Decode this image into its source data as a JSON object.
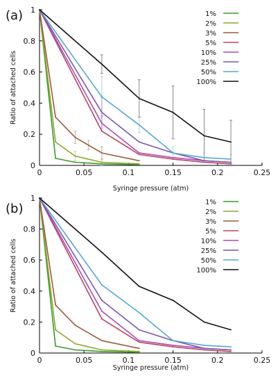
{
  "chart_data": [
    {
      "type": "line",
      "panel_label": "(a)",
      "xlabel": "Syringe pressure (atm)",
      "ylabel": "Ratio of attached cells",
      "xlim": [
        0,
        0.25
      ],
      "ylim": [
        0,
        1
      ],
      "xticks": [
        "0",
        "0.05",
        "0.1",
        "0.15",
        "0.2",
        "0.25"
      ],
      "yticks": [
        "0",
        "0.2",
        "0.4",
        "0.6",
        "0.8",
        "1"
      ],
      "grid": false,
      "legend": "top-right",
      "error_bars": true,
      "series": [
        {
          "name": "1%",
          "color": "#3a9b2e",
          "x": [
            0,
            0.018,
            0.04,
            0.07,
            0.112
          ],
          "y": [
            1,
            0.045,
            0.02,
            0.01,
            0.005
          ]
        },
        {
          "name": "2%",
          "color": "#8da62a",
          "x": [
            0,
            0.018,
            0.04,
            0.07,
            0.112
          ],
          "y": [
            1,
            0.15,
            0.06,
            0.02,
            0.01
          ]
        },
        {
          "name": "3%",
          "color": "#a0583a",
          "x": [
            0,
            0.018,
            0.04,
            0.07,
            0.112
          ],
          "y": [
            1,
            0.31,
            0.18,
            0.08,
            0.03
          ]
        },
        {
          "name": "5%",
          "color": "#b8455e",
          "x": [
            0,
            0.07,
            0.112,
            0.15,
            0.185,
            0.215
          ],
          "y": [
            1,
            0.22,
            0.07,
            0.04,
            0.02,
            0.01
          ]
        },
        {
          "name": "10%",
          "color": "#b049b5",
          "x": [
            0,
            0.07,
            0.112,
            0.15,
            0.185,
            0.215
          ],
          "y": [
            1,
            0.27,
            0.08,
            0.05,
            0.03,
            0.02
          ]
        },
        {
          "name": "25%",
          "color": "#7c55b0",
          "x": [
            0,
            0.07,
            0.112,
            0.15,
            0.185,
            0.215
          ],
          "y": [
            1,
            0.34,
            0.15,
            0.08,
            0.03,
            0.02
          ]
        },
        {
          "name": "50%",
          "color": "#56a6d8",
          "x": [
            0,
            0.07,
            0.112,
            0.15,
            0.185,
            0.215
          ],
          "y": [
            1,
            0.44,
            0.26,
            0.08,
            0.05,
            0.04
          ]
        },
        {
          "name": "100%",
          "color": "#111111",
          "x": [
            0,
            0.07,
            0.112,
            0.15,
            0.185,
            0.215
          ],
          "y": [
            1,
            0.65,
            0.43,
            0.34,
            0.19,
            0.15
          ]
        }
      ],
      "errorbars": [
        {
          "series": "100%",
          "x": 0.07,
          "y": 0.65,
          "err": 0.06
        },
        {
          "series": "100%",
          "x": 0.112,
          "y": 0.43,
          "err": 0.12
        },
        {
          "series": "100%",
          "x": 0.15,
          "y": 0.34,
          "err": 0.17
        },
        {
          "series": "100%",
          "x": 0.185,
          "y": 0.19,
          "err": 0.17
        },
        {
          "series": "100%",
          "x": 0.215,
          "y": 0.15,
          "err": 0.14
        },
        {
          "series": "50%",
          "x": 0.07,
          "y": 0.44,
          "err": 0.13
        },
        {
          "series": "50%",
          "x": 0.112,
          "y": 0.26,
          "err": 0.05
        },
        {
          "series": "50%",
          "x": 0.15,
          "y": 0.08,
          "err": 0.04
        },
        {
          "series": "50%",
          "x": 0.185,
          "y": 0.05,
          "err": 0.03
        },
        {
          "series": "50%",
          "x": 0.215,
          "y": 0.04,
          "err": 0.03
        },
        {
          "series": "25%",
          "x": 0.07,
          "y": 0.34,
          "err": 0.1
        },
        {
          "series": "10%",
          "x": 0.07,
          "y": 0.27,
          "err": 0.05
        },
        {
          "series": "3%",
          "x": 0.04,
          "y": 0.18,
          "err": 0.04
        },
        {
          "series": "3%",
          "x": 0.055,
          "y": 0.13,
          "err": 0.03
        },
        {
          "series": "3%",
          "x": 0.07,
          "y": 0.08,
          "err": 0.04
        },
        {
          "series": "2%",
          "x": 0.04,
          "y": 0.06,
          "err": 0.03
        },
        {
          "series": "2%",
          "x": 0.07,
          "y": 0.02,
          "err": 0.02
        }
      ]
    },
    {
      "type": "line",
      "panel_label": "(b)",
      "xlabel": "Syringe pressure (atm)",
      "ylabel": "Ratio of attached cells",
      "xlim": [
        0,
        0.25
      ],
      "ylim": [
        0,
        1
      ],
      "xticks": [
        "0",
        "0.05",
        "0.1",
        "0.15",
        "0.2",
        "0.25"
      ],
      "yticks": [
        "0",
        "0.2",
        "0.4",
        "0.6",
        "0.8",
        "1"
      ],
      "grid": false,
      "legend": "top-right",
      "error_bars": false,
      "series": [
        {
          "name": "1%",
          "color": "#3a9b2e",
          "x": [
            0,
            0.018,
            0.04,
            0.07,
            0.112
          ],
          "y": [
            1,
            0.045,
            0.02,
            0.01,
            0.005
          ]
        },
        {
          "name": "2%",
          "color": "#8da62a",
          "x": [
            0,
            0.018,
            0.04,
            0.07,
            0.112
          ],
          "y": [
            1,
            0.15,
            0.06,
            0.02,
            0.01
          ]
        },
        {
          "name": "3%",
          "color": "#a0583a",
          "x": [
            0,
            0.018,
            0.04,
            0.07,
            0.112
          ],
          "y": [
            1,
            0.31,
            0.18,
            0.08,
            0.03
          ]
        },
        {
          "name": "5%",
          "color": "#b8455e",
          "x": [
            0,
            0.07,
            0.112,
            0.15,
            0.185,
            0.215
          ],
          "y": [
            1,
            0.22,
            0.07,
            0.04,
            0.02,
            0.01
          ]
        },
        {
          "name": "10%",
          "color": "#b049b5",
          "x": [
            0,
            0.07,
            0.112,
            0.15,
            0.185,
            0.215
          ],
          "y": [
            1,
            0.27,
            0.08,
            0.05,
            0.03,
            0.02
          ]
        },
        {
          "name": "25%",
          "color": "#7c55b0",
          "x": [
            0,
            0.07,
            0.112,
            0.15,
            0.185,
            0.215
          ],
          "y": [
            1,
            0.34,
            0.15,
            0.08,
            0.03,
            0.02
          ]
        },
        {
          "name": "50%",
          "color": "#56a6d8",
          "x": [
            0,
            0.07,
            0.112,
            0.15,
            0.185,
            0.215
          ],
          "y": [
            1,
            0.44,
            0.26,
            0.08,
            0.05,
            0.04
          ]
        },
        {
          "name": "100%",
          "color": "#111111",
          "x": [
            0,
            0.07,
            0.112,
            0.15,
            0.185,
            0.215
          ],
          "y": [
            1,
            0.65,
            0.43,
            0.34,
            0.2,
            0.15
          ]
        }
      ],
      "errorbars": []
    }
  ]
}
